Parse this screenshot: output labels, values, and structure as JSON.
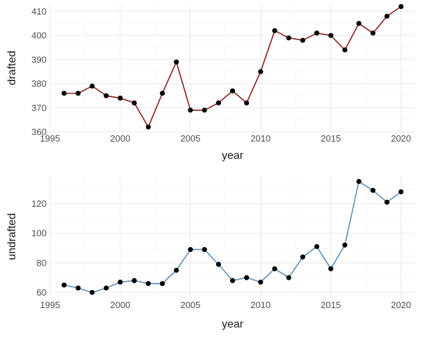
{
  "chart_data": [
    {
      "type": "line",
      "xlabel": "year",
      "ylabel": "drafted",
      "xlim": [
        1995,
        2021
      ],
      "ylim": [
        360,
        413
      ],
      "xticks": [
        1995,
        2000,
        2005,
        2010,
        2015,
        2020
      ],
      "yticks": [
        360,
        370,
        380,
        390,
        400,
        410
      ],
      "grid": true,
      "line_color": "#8b1a1a",
      "point_color": "#000000",
      "x": [
        1996,
        1997,
        1998,
        1999,
        2000,
        2001,
        2002,
        2003,
        2004,
        2005,
        2006,
        2007,
        2008,
        2009,
        2010,
        2011,
        2012,
        2013,
        2014,
        2015,
        2016,
        2017,
        2018,
        2019,
        2020
      ],
      "values": [
        376,
        376,
        379,
        375,
        374,
        372,
        362,
        376,
        389,
        369,
        369,
        372,
        377,
        372,
        385,
        402,
        399,
        398,
        401,
        400,
        394,
        405,
        401,
        408,
        412
      ]
    },
    {
      "type": "line",
      "xlabel": "year",
      "ylabel": "undrafted",
      "xlim": [
        1995,
        2021
      ],
      "ylim": [
        56,
        139
      ],
      "xticks": [
        1995,
        2000,
        2005,
        2010,
        2015,
        2020
      ],
      "yticks": [
        60,
        80,
        100,
        120
      ],
      "grid": true,
      "line_color": "#5b8db8",
      "point_color": "#000000",
      "x": [
        1996,
        1997,
        1998,
        1999,
        2000,
        2001,
        2002,
        2003,
        2004,
        2005,
        2006,
        2007,
        2008,
        2009,
        2010,
        2011,
        2012,
        2013,
        2014,
        2015,
        2016,
        2017,
        2018,
        2019,
        2020
      ],
      "values": [
        65,
        63,
        60,
        63,
        67,
        68,
        66,
        66,
        75,
        89,
        89,
        79,
        68,
        70,
        67,
        76,
        70,
        84,
        91,
        76,
        92,
        135,
        129,
        121,
        128
      ]
    }
  ]
}
